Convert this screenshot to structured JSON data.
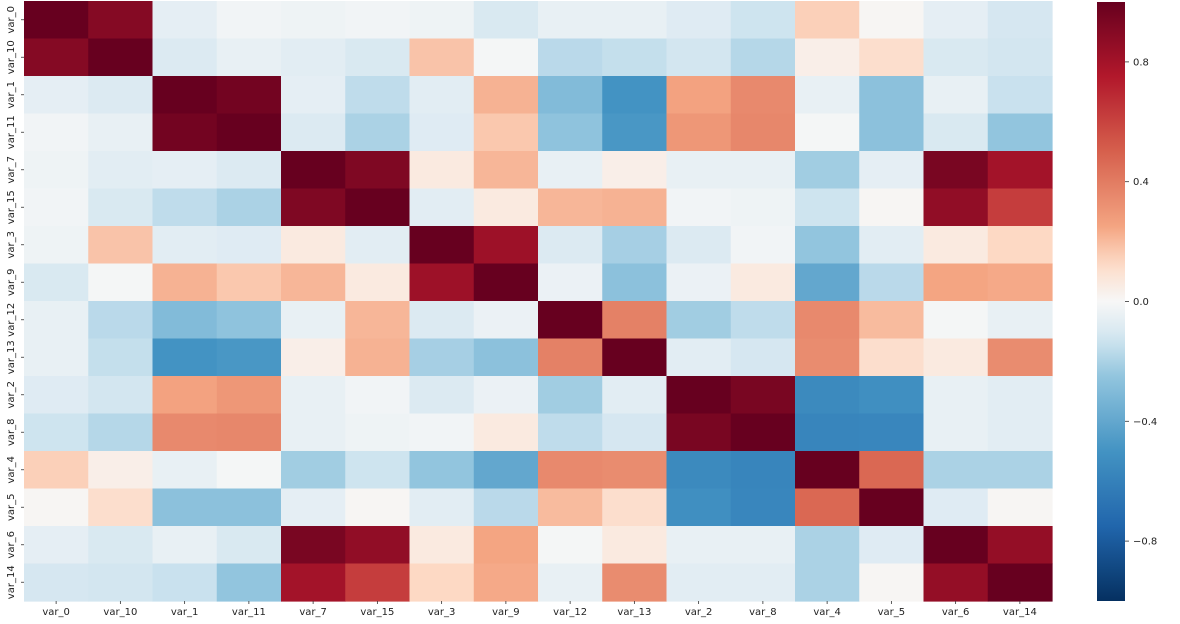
{
  "chart_data": {
    "type": "heatmap",
    "title": "",
    "xlabel": "",
    "ylabel": "",
    "labels": [
      "var_0",
      "var_10",
      "var_1",
      "var_11",
      "var_7",
      "var_15",
      "var_3",
      "var_9",
      "var_12",
      "var_13",
      "var_2",
      "var_8",
      "var_4",
      "var_5",
      "var_6",
      "var_14"
    ],
    "values": [
      [
        1.0,
        0.9,
        -0.06,
        -0.02,
        -0.03,
        -0.02,
        -0.03,
        -0.1,
        -0.05,
        -0.05,
        -0.08,
        -0.13,
        0.15,
        0.01,
        -0.06,
        -0.11
      ],
      [
        0.9,
        1.0,
        -0.09,
        -0.05,
        -0.07,
        -0.1,
        0.18,
        -0.01,
        -0.17,
        -0.15,
        -0.12,
        -0.18,
        0.04,
        0.11,
        -0.1,
        -0.12
      ],
      [
        -0.06,
        -0.09,
        1.0,
        0.96,
        -0.06,
        -0.16,
        -0.07,
        0.22,
        -0.3,
        -0.5,
        0.26,
        0.35,
        -0.05,
        -0.27,
        -0.05,
        -0.14
      ],
      [
        -0.02,
        -0.05,
        0.96,
        1.0,
        -0.09,
        -0.2,
        -0.08,
        0.17,
        -0.26,
        -0.48,
        0.3,
        0.36,
        -0.01,
        -0.27,
        -0.1,
        -0.25
      ],
      [
        -0.03,
        -0.07,
        -0.06,
        -0.09,
        1.0,
        0.92,
        0.06,
        0.21,
        -0.05,
        0.04,
        -0.05,
        -0.05,
        -0.22,
        -0.06,
        0.94,
        0.8
      ],
      [
        -0.02,
        -0.1,
        -0.16,
        -0.2,
        0.92,
        1.0,
        -0.07,
        0.06,
        0.21,
        0.22,
        -0.02,
        -0.03,
        -0.13,
        0.01,
        0.86,
        0.62
      ],
      [
        -0.03,
        0.18,
        -0.07,
        -0.08,
        0.06,
        -0.07,
        1.0,
        0.82,
        -0.09,
        -0.21,
        -0.09,
        -0.02,
        -0.25,
        -0.07,
        0.06,
        0.13
      ],
      [
        -0.1,
        -0.01,
        0.22,
        0.17,
        0.21,
        0.06,
        0.82,
        1.0,
        -0.04,
        -0.27,
        -0.04,
        0.06,
        -0.4,
        -0.17,
        0.25,
        0.24
      ],
      [
        -0.05,
        -0.17,
        -0.3,
        -0.26,
        -0.05,
        0.21,
        -0.09,
        -0.04,
        1.0,
        0.38,
        -0.22,
        -0.16,
        0.35,
        0.2,
        -0.01,
        -0.05
      ],
      [
        -0.05,
        -0.15,
        -0.5,
        -0.48,
        0.04,
        0.22,
        -0.21,
        -0.27,
        0.38,
        1.0,
        -0.07,
        -0.11,
        0.34,
        0.11,
        0.06,
        0.34
      ],
      [
        -0.08,
        -0.12,
        0.26,
        0.3,
        -0.05,
        -0.02,
        -0.09,
        -0.04,
        -0.22,
        -0.07,
        1.0,
        0.94,
        -0.55,
        -0.52,
        -0.05,
        -0.07
      ],
      [
        -0.13,
        -0.18,
        0.35,
        0.36,
        -0.05,
        -0.03,
        -0.02,
        0.06,
        -0.16,
        -0.11,
        0.94,
        1.0,
        -0.58,
        -0.57,
        -0.05,
        -0.07
      ],
      [
        0.15,
        0.04,
        -0.05,
        -0.01,
        -0.22,
        -0.13,
        -0.25,
        -0.4,
        0.35,
        0.34,
        -0.55,
        -0.58,
        1.0,
        0.47,
        -0.2,
        -0.2
      ],
      [
        0.01,
        0.11,
        -0.27,
        -0.27,
        -0.06,
        0.01,
        -0.07,
        -0.17,
        0.2,
        0.11,
        -0.52,
        -0.57,
        0.47,
        1.0,
        -0.08,
        0.01
      ],
      [
        -0.06,
        -0.1,
        -0.05,
        -0.1,
        0.94,
        0.86,
        0.06,
        0.25,
        -0.01,
        0.06,
        -0.05,
        -0.05,
        -0.2,
        -0.08,
        1.0,
        0.85
      ],
      [
        -0.11,
        -0.12,
        -0.14,
        -0.25,
        0.8,
        0.62,
        0.13,
        0.24,
        -0.05,
        0.34,
        -0.07,
        -0.07,
        -0.2,
        0.01,
        0.85,
        1.0
      ]
    ],
    "vmin": -1.0,
    "vmax": 1.0,
    "colormap": "RdBu_r",
    "colorbar": {
      "ticks": [
        0.8,
        0.4,
        0.0,
        -0.4,
        -0.8
      ],
      "tick_labels": [
        "0.8",
        "0.4",
        "0.0",
        "−0.4",
        "−0.8"
      ]
    }
  }
}
